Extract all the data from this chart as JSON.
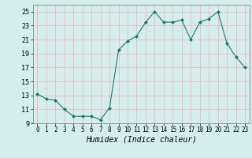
{
  "x": [
    0,
    1,
    2,
    3,
    4,
    5,
    6,
    7,
    8,
    9,
    10,
    11,
    12,
    13,
    14,
    15,
    16,
    17,
    18,
    19,
    20,
    21,
    22,
    23
  ],
  "y": [
    13.2,
    12.5,
    12.3,
    11.0,
    10.0,
    10.0,
    10.0,
    9.5,
    11.2,
    19.5,
    20.8,
    21.5,
    23.5,
    25.0,
    23.5,
    23.5,
    23.8,
    21.0,
    23.5,
    24.0,
    25.0,
    20.5,
    18.5,
    17.0
  ],
  "line_color": "#1a7a6e",
  "marker": "D",
  "marker_size": 2,
  "bg_color": "#d4eeee",
  "grid_color": "#f0b8b8",
  "xlabel": "Humidex (Indice chaleur)",
  "ylim": [
    9,
    26
  ],
  "xlim": [
    -0.5,
    23.5
  ],
  "yticks": [
    9,
    11,
    13,
    15,
    17,
    19,
    21,
    23,
    25
  ],
  "xticks": [
    0,
    1,
    2,
    3,
    4,
    5,
    6,
    7,
    8,
    9,
    10,
    11,
    12,
    13,
    14,
    15,
    16,
    17,
    18,
    19,
    20,
    21,
    22,
    23
  ]
}
